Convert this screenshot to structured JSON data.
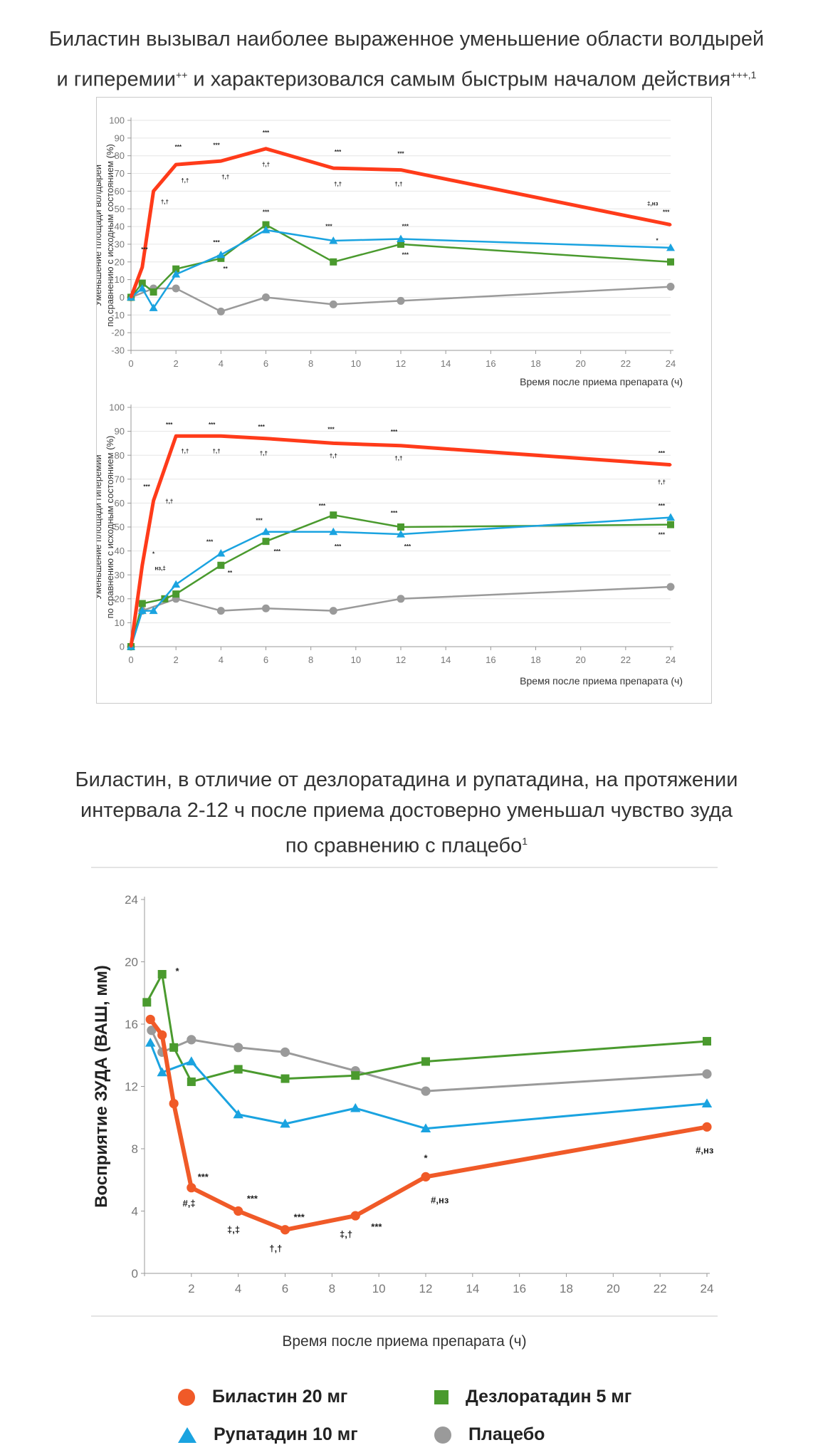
{
  "header": {
    "title_line1": "Биластин вызывал наиболее выраженное уменьшение области волдырей",
    "title_line2": "и гиперемии",
    "title_line2_sup1": "++",
    "title_line2_rest": " и характеризовался самым быстрым началом действия",
    "title_line2_sup2": "+++,1"
  },
  "section2": {
    "title_line1": "Биластин, в отличие от дезлоратадина и рупатадина, на протяжении",
    "title_line2": "интервала 2-12 ч после приема достоверно уменьшал чувство зуда",
    "title_line3": "по сравнению с плацебо",
    "title_line3_sup": "1"
  },
  "colors": {
    "bilastine": "#f05a28",
    "bilastine_top": "#ff3b1a",
    "desloratadine": "#4a9a2e",
    "rupatadine": "#1aa3e0",
    "placebo": "#9a9a9a"
  },
  "legend": {
    "bilastine": "Биластин 20 мг",
    "desloratadine": "Дезлоратадин 5 мг",
    "rupatadine": "Рупатадин 10 мг",
    "placebo": "Плацебо"
  },
  "chart_data": [
    {
      "type": "line",
      "ylabel_line1": "Уменьшение площади волдырей",
      "ylabel_line2": "по сравнению с исходным состоянием (%)",
      "xlabel": "Время после приема препарата (ч)",
      "xlim": [
        0,
        24
      ],
      "ylim": [
        -30,
        100
      ],
      "xticks": [
        0,
        2,
        4,
        6,
        8,
        10,
        12,
        14,
        16,
        18,
        20,
        22,
        24
      ],
      "yticks": [
        -30,
        -20,
        -10,
        0,
        10,
        20,
        30,
        40,
        50,
        60,
        70,
        80,
        90,
        100
      ],
      "series": [
        {
          "key": "bilastine",
          "marker": "none",
          "x": [
            0,
            0.5,
            1,
            2,
            4,
            6,
            9,
            12,
            24
          ],
          "y": [
            0,
            17,
            60,
            75,
            77,
            84,
            73,
            72,
            41
          ]
        },
        {
          "key": "rupatadine",
          "marker": "triangle",
          "x": [
            0,
            0.5,
            1,
            2,
            4,
            6,
            9,
            12,
            24
          ],
          "y": [
            0,
            5,
            -6,
            13,
            24,
            38,
            32,
            33,
            28
          ]
        },
        {
          "key": "desloratadine",
          "marker": "square",
          "x": [
            0,
            0.5,
            1,
            2,
            4,
            6,
            9,
            12,
            24
          ],
          "y": [
            0,
            8,
            3,
            16,
            22,
            41,
            20,
            30,
            20
          ]
        },
        {
          "key": "placebo",
          "marker": "circle",
          "x": [
            0,
            1,
            2,
            4,
            6,
            9,
            12,
            24
          ],
          "y": [
            0,
            5,
            5,
            -8,
            0,
            -4,
            -2,
            6
          ]
        }
      ],
      "annotations": [
        {
          "x": 0.6,
          "y": 26,
          "text": "***"
        },
        {
          "x": 1.5,
          "y": 53,
          "text": "†,†"
        },
        {
          "x": 2.1,
          "y": 84,
          "text": "***"
        },
        {
          "x": 2.4,
          "y": 65,
          "text": "†,†"
        },
        {
          "x": 3.8,
          "y": 85,
          "text": "***"
        },
        {
          "x": 4.2,
          "y": 67,
          "text": "†,†"
        },
        {
          "x": 6.0,
          "y": 92,
          "text": "***"
        },
        {
          "x": 6.0,
          "y": 74,
          "text": "†,†"
        },
        {
          "x": 9.2,
          "y": 81,
          "text": "***"
        },
        {
          "x": 9.2,
          "y": 63,
          "text": "†,†"
        },
        {
          "x": 12.0,
          "y": 80,
          "text": "***"
        },
        {
          "x": 11.9,
          "y": 63,
          "text": "†,†"
        },
        {
          "x": 23.2,
          "y": 52,
          "text": "‡,нз"
        },
        {
          "x": 23.8,
          "y": 47,
          "text": "***"
        },
        {
          "x": 3.8,
          "y": 30,
          "text": "***"
        },
        {
          "x": 4.2,
          "y": 15,
          "text": "**"
        },
        {
          "x": 6.0,
          "y": 47,
          "text": "***"
        },
        {
          "x": 8.8,
          "y": 39,
          "text": "***"
        },
        {
          "x": 12.2,
          "y": 39,
          "text": "***"
        },
        {
          "x": 12.2,
          "y": 23,
          "text": "***"
        },
        {
          "x": 23.4,
          "y": 31,
          "text": "*"
        }
      ]
    },
    {
      "type": "line",
      "ylabel_line1": "Уменьшение площади гиперемии",
      "ylabel_line2": "по сравнению с исходным состоянием (%)",
      "xlabel": "Время после приема препарата (ч)",
      "xlim": [
        0,
        24
      ],
      "ylim": [
        0,
        100
      ],
      "xticks": [
        0,
        2,
        4,
        6,
        8,
        10,
        12,
        14,
        16,
        18,
        20,
        22,
        24
      ],
      "yticks": [
        0,
        10,
        20,
        30,
        40,
        50,
        60,
        70,
        80,
        90,
        100
      ],
      "series": [
        {
          "key": "bilastine",
          "marker": "none",
          "x": [
            0,
            0.5,
            1,
            2,
            4,
            6,
            9,
            12,
            24
          ],
          "y": [
            0,
            34,
            61,
            88,
            88,
            87,
            85,
            84,
            76
          ]
        },
        {
          "key": "rupatadine",
          "marker": "triangle",
          "x": [
            0,
            0.5,
            1,
            2,
            4,
            6,
            9,
            12,
            24
          ],
          "y": [
            0,
            15,
            15,
            26,
            39,
            48,
            48,
            47,
            54
          ]
        },
        {
          "key": "desloratadine",
          "marker": "square",
          "x": [
            0,
            0.5,
            1.5,
            2,
            4,
            6,
            9,
            12,
            24
          ],
          "y": [
            0,
            18,
            20,
            22,
            34,
            44,
            55,
            50,
            51
          ]
        },
        {
          "key": "placebo",
          "marker": "circle",
          "x": [
            0,
            0.5,
            2,
            4,
            6,
            9,
            12,
            24
          ],
          "y": [
            0,
            15,
            20,
            15,
            16,
            15,
            20,
            25
          ]
        }
      ],
      "annotations": [
        {
          "x": 0.7,
          "y": 66,
          "text": "***"
        },
        {
          "x": 1.7,
          "y": 60,
          "text": "†,†"
        },
        {
          "x": 1.7,
          "y": 92,
          "text": "***"
        },
        {
          "x": 2.4,
          "y": 81,
          "text": "†,†"
        },
        {
          "x": 3.6,
          "y": 92,
          "text": "***"
        },
        {
          "x": 3.8,
          "y": 81,
          "text": "†,†"
        },
        {
          "x": 5.8,
          "y": 91,
          "text": "***"
        },
        {
          "x": 5.9,
          "y": 80,
          "text": "†,†"
        },
        {
          "x": 8.9,
          "y": 90,
          "text": "***"
        },
        {
          "x": 9.0,
          "y": 79,
          "text": "†,†"
        },
        {
          "x": 11.7,
          "y": 89,
          "text": "***"
        },
        {
          "x": 11.9,
          "y": 78,
          "text": "†,†"
        },
        {
          "x": 23.6,
          "y": 80,
          "text": "***"
        },
        {
          "x": 23.6,
          "y": 68,
          "text": "†,†"
        },
        {
          "x": 1.0,
          "y": 38,
          "text": "*"
        },
        {
          "x": 1.3,
          "y": 32,
          "text": "нз,‡"
        },
        {
          "x": 3.5,
          "y": 43,
          "text": "***"
        },
        {
          "x": 4.4,
          "y": 30,
          "text": "**"
        },
        {
          "x": 5.7,
          "y": 52,
          "text": "***"
        },
        {
          "x": 6.5,
          "y": 39,
          "text": "***"
        },
        {
          "x": 8.5,
          "y": 58,
          "text": "***"
        },
        {
          "x": 9.2,
          "y": 41,
          "text": "***"
        },
        {
          "x": 11.7,
          "y": 55,
          "text": "***"
        },
        {
          "x": 12.3,
          "y": 41,
          "text": "***"
        },
        {
          "x": 23.6,
          "y": 58,
          "text": "***"
        },
        {
          "x": 23.6,
          "y": 46,
          "text": "***"
        }
      ]
    },
    {
      "type": "line",
      "ylabel": "Восприятие ЗУДА (ВАШ, мм)",
      "xlabel": "Время после приема препарата (ч)",
      "xlim": [
        0,
        24
      ],
      "ylim": [
        0,
        24
      ],
      "xticks": [
        2,
        4,
        6,
        8,
        10,
        12,
        14,
        16,
        18,
        20,
        22,
        24
      ],
      "yticks": [
        0,
        4,
        8,
        12,
        16,
        20,
        24
      ],
      "series": [
        {
          "key": "bilastine",
          "marker": "circle",
          "x": [
            0.25,
            0.75,
            1.25,
            2,
            4,
            6,
            9,
            12,
            24
          ],
          "y": [
            16.3,
            15.3,
            10.9,
            5.5,
            4.0,
            2.8,
            3.7,
            6.2,
            9.4
          ]
        },
        {
          "key": "rupatadine",
          "marker": "triangle",
          "x": [
            0.25,
            0.75,
            2,
            4,
            6,
            9,
            12,
            24
          ],
          "y": [
            14.8,
            12.9,
            13.6,
            10.2,
            9.6,
            10.6,
            9.3,
            10.9
          ]
        },
        {
          "key": "desloratadine",
          "marker": "square",
          "x": [
            0.1,
            0.75,
            1.25,
            2,
            4,
            6,
            9,
            12,
            24
          ],
          "y": [
            17.4,
            19.2,
            14.5,
            12.3,
            13.1,
            12.5,
            12.7,
            13.6,
            14.9
          ]
        },
        {
          "key": "placebo",
          "marker": "circle",
          "x": [
            0.3,
            0.75,
            2,
            4,
            6,
            9,
            12,
            24
          ],
          "y": [
            15.6,
            14.2,
            15.0,
            14.5,
            14.2,
            13.0,
            11.7,
            12.8
          ]
        }
      ],
      "annotations": [
        {
          "x": 1.4,
          "y": 19.2,
          "text": "*"
        },
        {
          "x": 2.5,
          "y": 6.0,
          "text": "***"
        },
        {
          "x": 1.9,
          "y": 4.3,
          "text": "#,‡"
        },
        {
          "x": 4.6,
          "y": 4.6,
          "text": "***"
        },
        {
          "x": 3.8,
          "y": 2.6,
          "text": "‡,‡"
        },
        {
          "x": 6.6,
          "y": 3.4,
          "text": "***"
        },
        {
          "x": 5.6,
          "y": 1.4,
          "text": "†,†"
        },
        {
          "x": 9.9,
          "y": 2.8,
          "text": "***"
        },
        {
          "x": 8.6,
          "y": 2.3,
          "text": "‡,†"
        },
        {
          "x": 12.0,
          "y": 7.2,
          "text": "*"
        },
        {
          "x": 12.6,
          "y": 4.5,
          "text": "#,нз"
        },
        {
          "x": 23.9,
          "y": 7.7,
          "text": "#,нз"
        }
      ]
    }
  ]
}
